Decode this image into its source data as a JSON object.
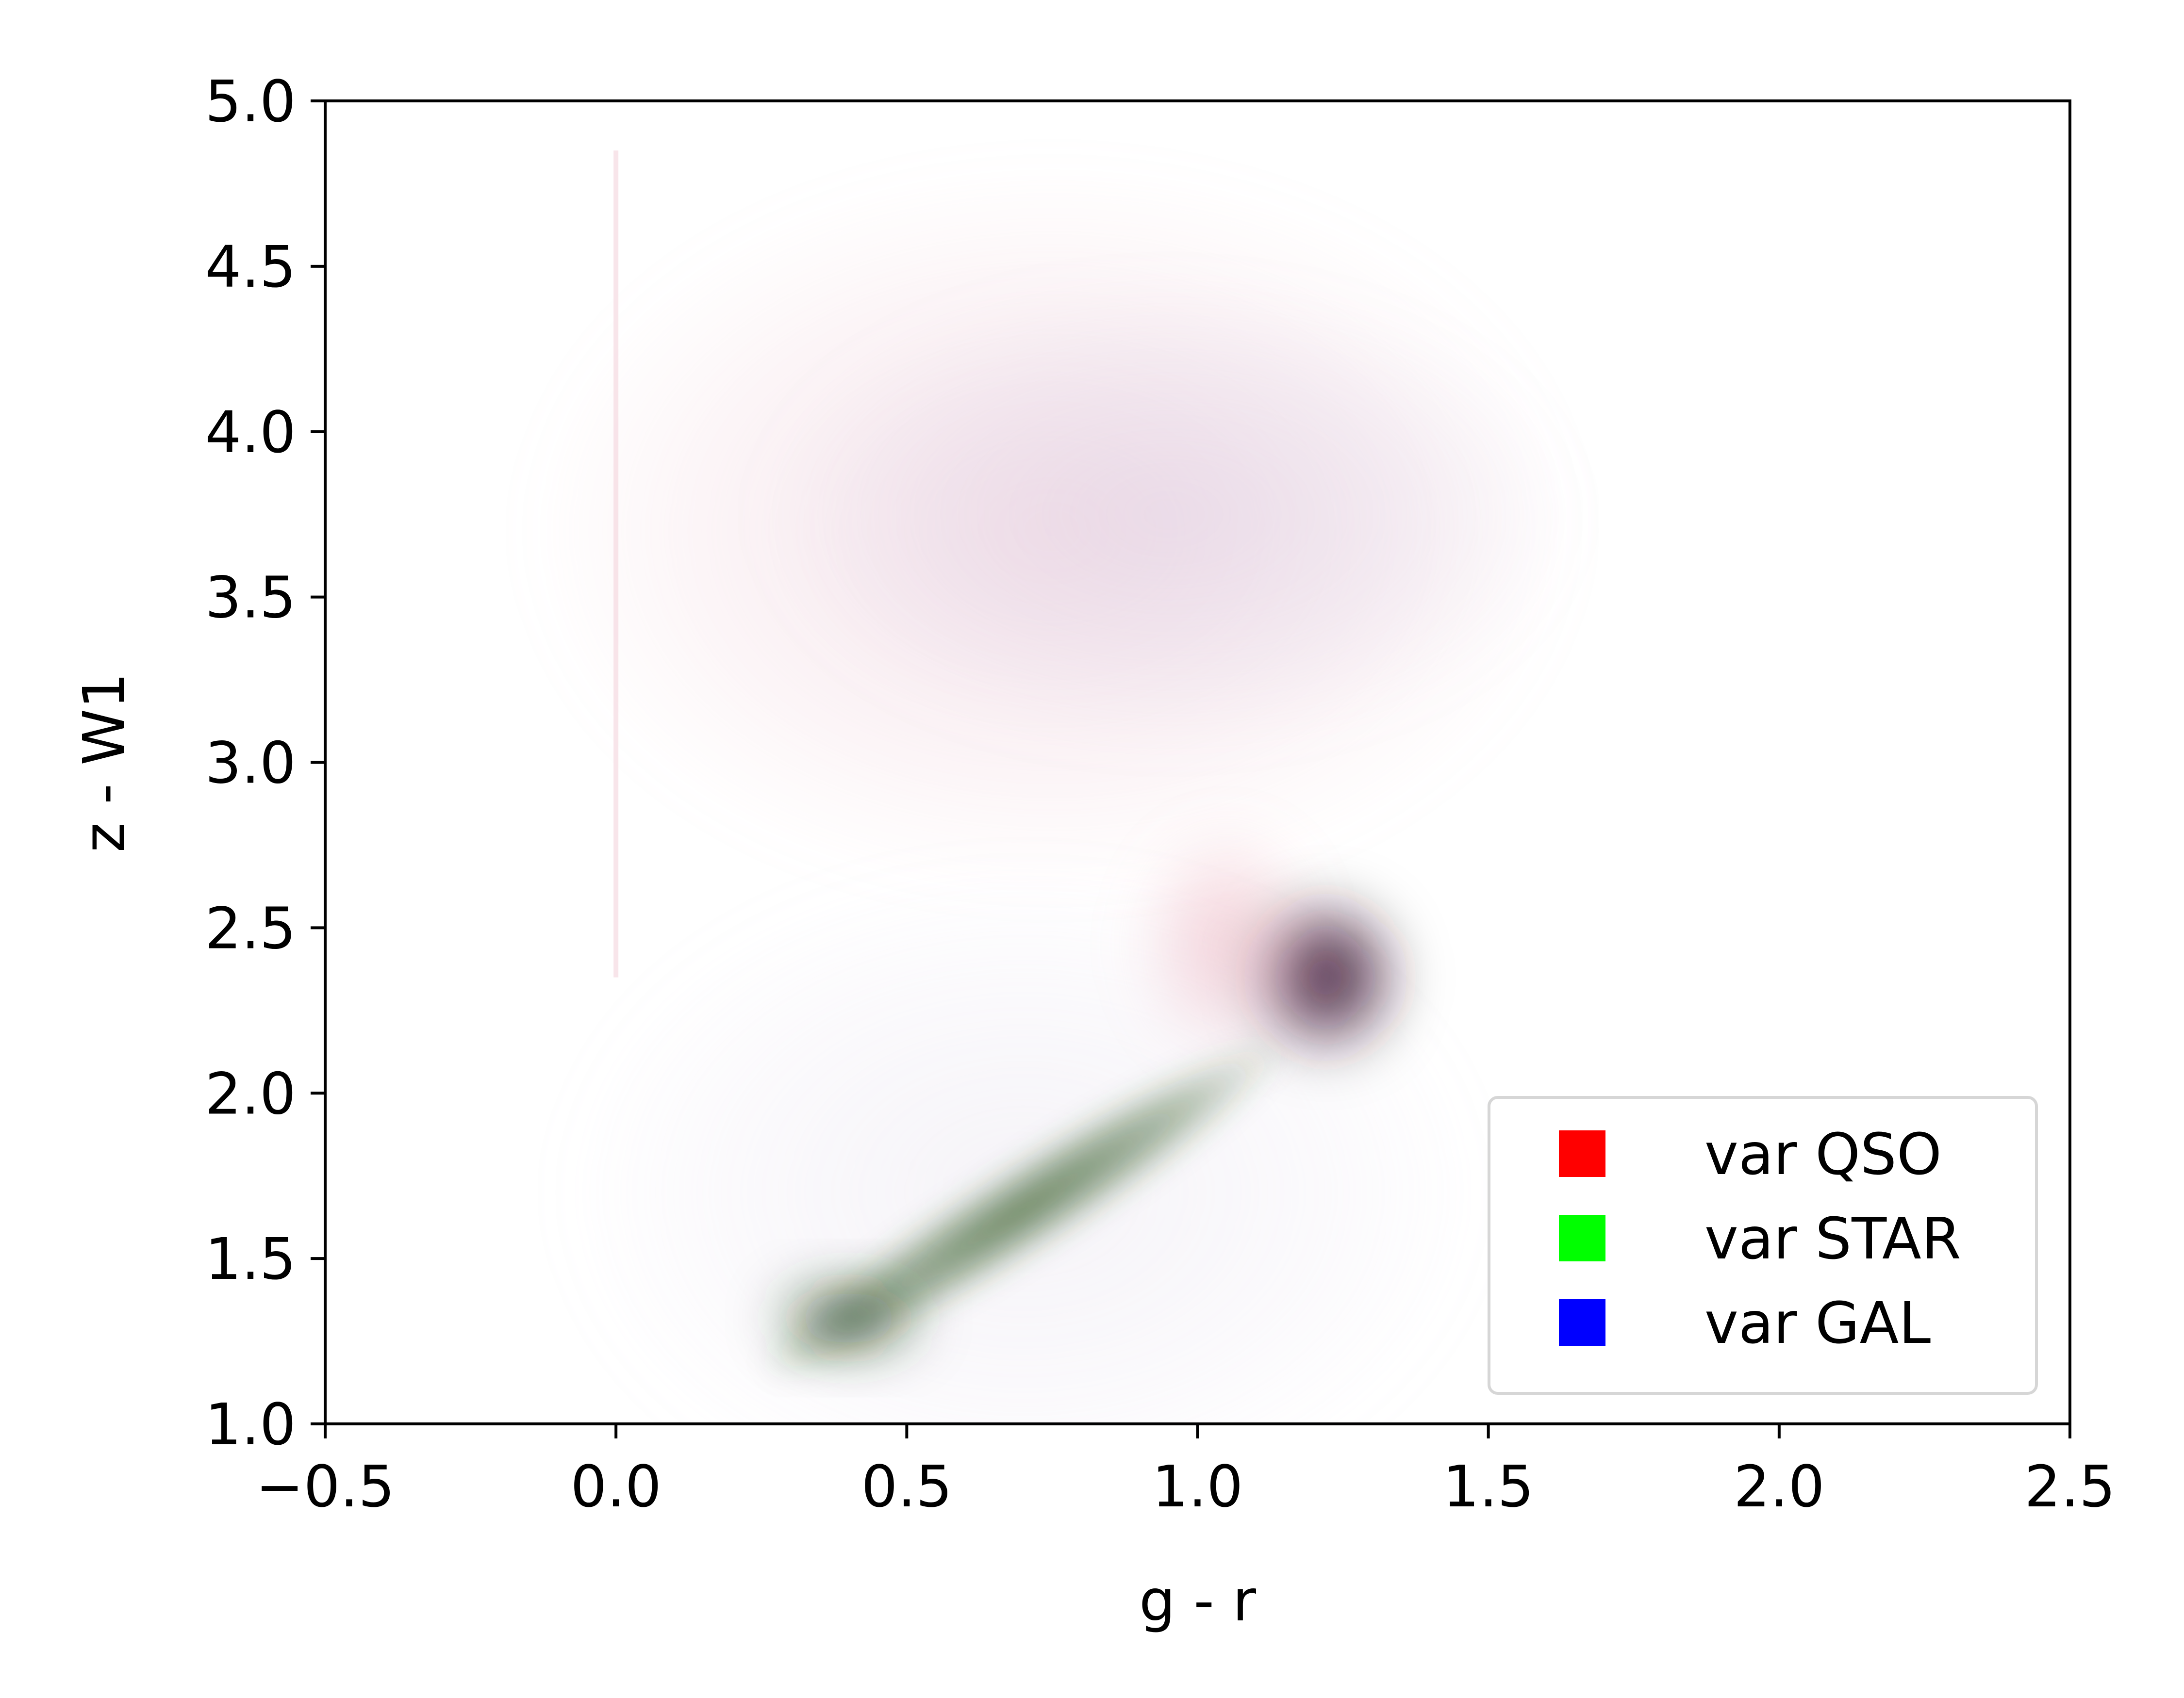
{
  "chart_data": {
    "type": "heatmap",
    "title": "",
    "xlabel": "g - r",
    "ylabel": "z - W1",
    "xlim": [
      -0.5,
      2.5
    ],
    "ylim": [
      1.0,
      5.0
    ],
    "x_ticks": [
      -0.5,
      0.0,
      0.5,
      1.0,
      1.5,
      2.0,
      2.5
    ],
    "y_ticks": [
      1.0,
      1.5,
      2.0,
      2.5,
      3.0,
      3.5,
      4.0,
      4.5,
      5.0
    ],
    "x_tick_labels": [
      "−0.5",
      "0.0",
      "0.5",
      "1.0",
      "1.5",
      "2.0",
      "2.5"
    ],
    "y_tick_labels": [
      "1.0",
      "1.5",
      "2.0",
      "2.5",
      "3.0",
      "3.5",
      "4.0",
      "4.5",
      "5.0"
    ],
    "grid": false,
    "legend_position": "lower-right",
    "legend": [
      {
        "label": "var QSO",
        "color": "#ff0000"
      },
      {
        "label": "var STAR",
        "color": "#00ff00"
      },
      {
        "label": "var GAL",
        "color": "#0000ff"
      }
    ],
    "density_regions": [
      {
        "name": "QSO cloud",
        "color": "#e8b8c8",
        "center": [
          0.75,
          3.7
        ],
        "spread": [
          0.45,
          0.55
        ],
        "intensity": 0.35
      },
      {
        "name": "GAL cloud",
        "color": "#c8b4d4",
        "center": [
          0.95,
          3.75
        ],
        "spread": [
          0.35,
          0.35
        ],
        "intensity": 0.3
      },
      {
        "name": "dense core",
        "color": "#2a0820",
        "center": [
          1.22,
          2.35
        ],
        "spread": [
          0.07,
          0.13
        ],
        "intensity": 1.0
      },
      {
        "name": "red wing",
        "color": "#e8a0b0",
        "center": [
          1.05,
          2.45
        ],
        "spread": [
          0.08,
          0.18
        ],
        "intensity": 0.5
      },
      {
        "name": "STAR locus",
        "color": "#2e5a1e",
        "from": [
          0.25,
          1.15
        ],
        "to": [
          1.15,
          2.15
        ],
        "intensity": 0.9
      },
      {
        "name": "STAR peak",
        "color": "#1a3a10",
        "center": [
          0.4,
          1.32
        ],
        "spread": [
          0.07,
          0.06
        ],
        "intensity": 1.0
      },
      {
        "name": "halo",
        "color": "#d8d0e4",
        "center": [
          0.7,
          1.7
        ],
        "spread": [
          0.4,
          0.5
        ],
        "intensity": 0.25
      }
    ]
  }
}
